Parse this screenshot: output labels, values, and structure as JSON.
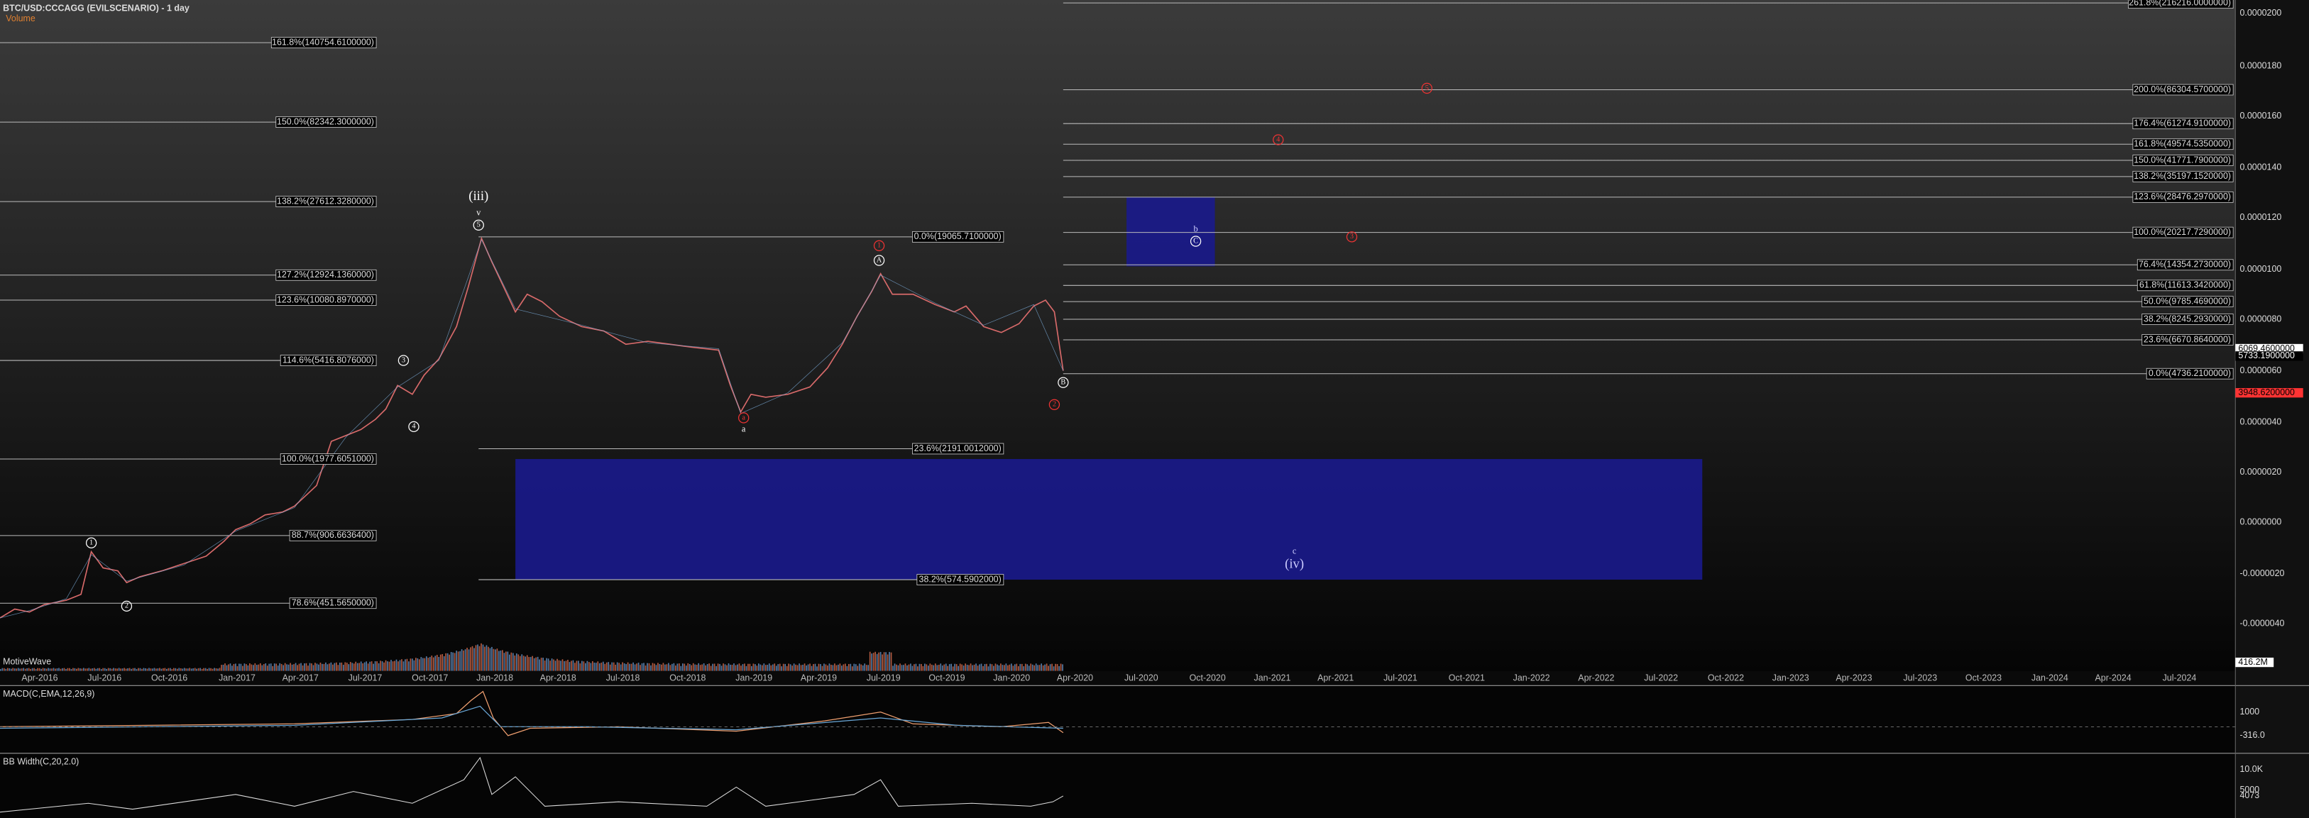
{
  "header": {
    "title": "BTC/USD:CCCAGG (EVILSCENARIO) - 1 day",
    "volume_label": "Volume",
    "brand": "MotiveWave"
  },
  "fib_levels_left": [
    "161.8%(140754.6100000)",
    "150.0%(82342.3000000)",
    "138.2%(27612.3280000)",
    "127.2%(12924.1360000)",
    "123.6%(10080.8970000)",
    "114.6%(5416.8076000)",
    "100.0%(1977.6051000)",
    "88.7%(906.6636400)",
    "78.6%(451.5650000)"
  ],
  "fib_levels_mid": [
    "0.0%(19065.7100000)",
    "23.6%(2191.0012000)",
    "38.2%(574.5902000)"
  ],
  "fib_levels_right": [
    "261.8%(216216.0000000)",
    "200.0%(86304.5700000)",
    "176.4%(61274.9100000)",
    "161.8%(49574.5350000)",
    "150.0%(41771.7900000)",
    "138.2%(35197.1520000)",
    "123.6%(28476.2970000)",
    "100.0%(20217.7290000)",
    "76.4%(14354.2730000)",
    "61.8%(11613.3420000)",
    "50.0%(9785.4690000)",
    "38.2%(8245.2930000)",
    "23.6%(6670.8640000)",
    "0.0%(4736.2100000)"
  ],
  "price_axis": [
    "0.0000200",
    "0.0000180",
    "0.0000160",
    "0.0000140",
    "0.0000120",
    "0.0000100",
    "0.0000080",
    "0.0000060",
    "0.0000040",
    "0.0000020",
    "0.0000000",
    "-0.0000020",
    "-0.0000040"
  ],
  "price_tags": [
    "6069.4600000",
    "5733.1900000",
    "3948.6200000"
  ],
  "volume_tag": "416.2M",
  "date_axis": [
    "Apr-2016",
    "Jul-2016",
    "Oct-2016",
    "Jan-2017",
    "Apr-2017",
    "Jul-2017",
    "Oct-2017",
    "Jan-2018",
    "Apr-2018",
    "Jul-2018",
    "Oct-2018",
    "Jan-2019",
    "Apr-2019",
    "Jul-2019",
    "Oct-2019",
    "Jan-2020",
    "Apr-2020",
    "Jul-2020",
    "Oct-2020",
    "Jan-2021",
    "Apr-2021",
    "Jul-2021",
    "Oct-2021",
    "Jan-2022",
    "Apr-2022",
    "Jul-2022",
    "Oct-2022",
    "Jan-2023",
    "Apr-2023",
    "Jul-2023",
    "Oct-2023",
    "Jan-2024",
    "Apr-2024",
    "Jul-2024"
  ],
  "waves": [
    "(iii)",
    "v",
    "5",
    "1",
    "2",
    "3",
    "4",
    "A",
    "B",
    "C",
    "b",
    "1",
    "2",
    "3",
    "4",
    "5",
    "a",
    "a",
    "c",
    "(iv)"
  ],
  "macd": {
    "title": "MACD(C,EMA,12,26,9)",
    "ticks": [
      "1000",
      "-316.0"
    ]
  },
  "bb": {
    "title": "BB Width(C,20,2.0)",
    "ticks": [
      "10.0K",
      "5000",
      "4073"
    ]
  }
}
